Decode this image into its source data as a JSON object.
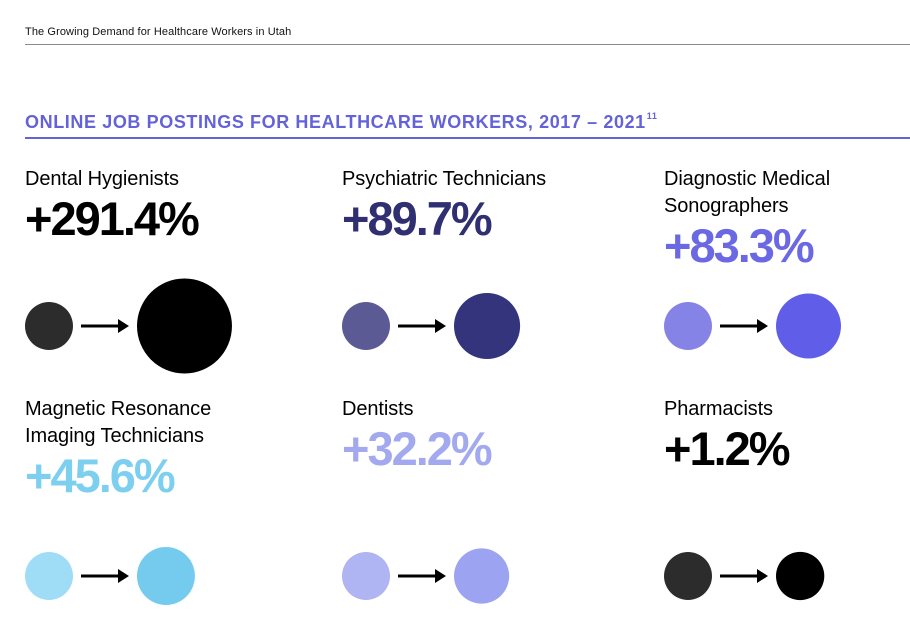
{
  "header": {
    "doc_title": "The Growing Demand for Healthcare Workers in Utah"
  },
  "chart_data": {
    "type": "bubble-comparison",
    "title": "ONLINE JOB POSTINGS FOR HEALTHCARE WORKERS, 2017 – 2021",
    "title_footnote": "11",
    "accent_color": "#6462d9",
    "items": [
      {
        "label_lines": [
          "Dental Hygienists"
        ],
        "value": 291.4,
        "value_text": "+291.4%",
        "value_color": "#000000",
        "from_color": "#2c2c2c",
        "to_color": "#000000"
      },
      {
        "label_lines": [
          "Psychiatric Technicians"
        ],
        "value": 89.7,
        "value_text": "+89.7%",
        "value_color": "#2f2f72",
        "from_color": "#5b5a94",
        "to_color": "#34347c"
      },
      {
        "label_lines": [
          "Diagnostic Medical",
          "Sonographers"
        ],
        "value": 83.3,
        "value_text": "+83.3%",
        "value_color": "#6b68e3",
        "from_color": "#8583e6",
        "to_color": "#605ee8"
      },
      {
        "label_lines": [
          "Magnetic Resonance",
          "Imaging Technicians"
        ],
        "value": 45.6,
        "value_text": "+45.6%",
        "value_color": "#7dcff0",
        "from_color": "#9fdcf5",
        "to_color": "#74cbee"
      },
      {
        "label_lines": [
          "Dentists"
        ],
        "value": 32.2,
        "value_text": "+32.2%",
        "value_color": "#a3a9ef",
        "from_color": "#afb4f2",
        "to_color": "#9ca3f0"
      },
      {
        "label_lines": [
          "Pharmacists"
        ],
        "value": 1.2,
        "value_text": "+1.2%",
        "value_color": "#000000",
        "from_color": "#2c2c2c",
        "to_color": "#000000"
      }
    ]
  }
}
